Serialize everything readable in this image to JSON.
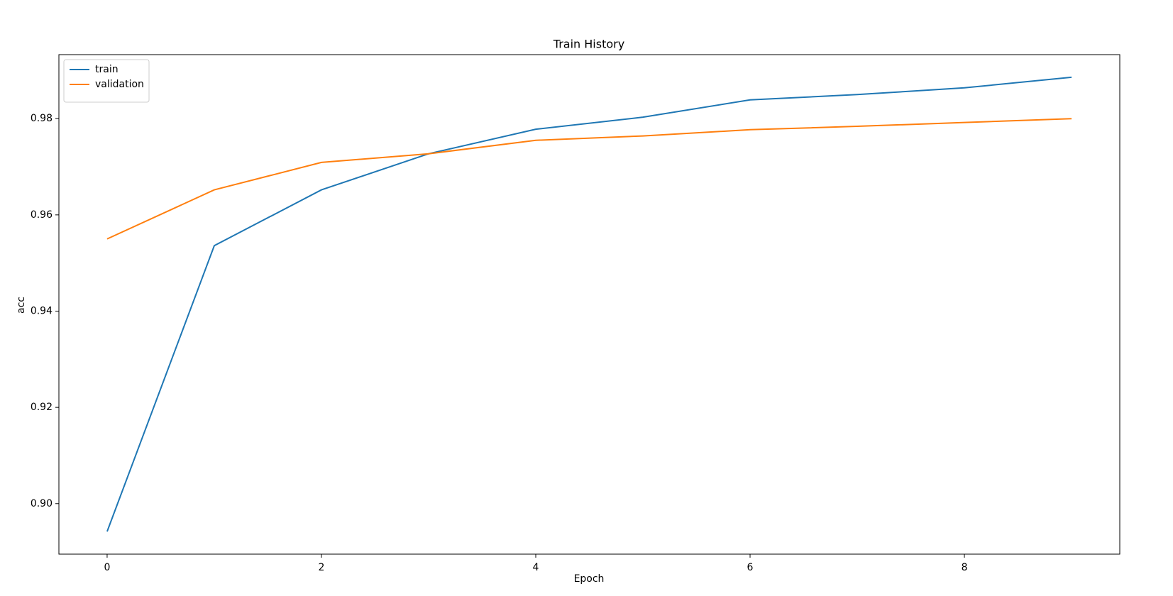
{
  "chart_data": {
    "type": "line",
    "title": "Train History",
    "x_label": "Epoch",
    "y_label": "acc",
    "x": [
      0,
      1,
      2,
      3,
      4,
      5,
      6,
      7,
      8,
      9
    ],
    "series": [
      {
        "name": "train",
        "color": "#1f77b4",
        "values": [
          0.8942,
          0.9536,
          0.9652,
          0.9727,
          0.9778,
          0.9803,
          0.9839,
          0.985,
          0.9864,
          0.9886
        ]
      },
      {
        "name": "validation",
        "color": "#ff7f0e",
        "values": [
          0.955,
          0.9652,
          0.9709,
          0.9727,
          0.9755,
          0.9764,
          0.9777,
          0.9784,
          0.9792,
          0.98
        ]
      }
    ],
    "xlim": [
      -0.45,
      9.45
    ],
    "xticks": [
      0,
      2,
      4,
      6,
      8
    ],
    "ylim": [
      0.8895,
      0.9933
    ],
    "yticks": [
      {
        "value": 0.9,
        "label": "0.90"
      },
      0.92,
      0.94,
      0.96,
      0.98
    ],
    "legend": "upper left",
    "grid": false
  }
}
